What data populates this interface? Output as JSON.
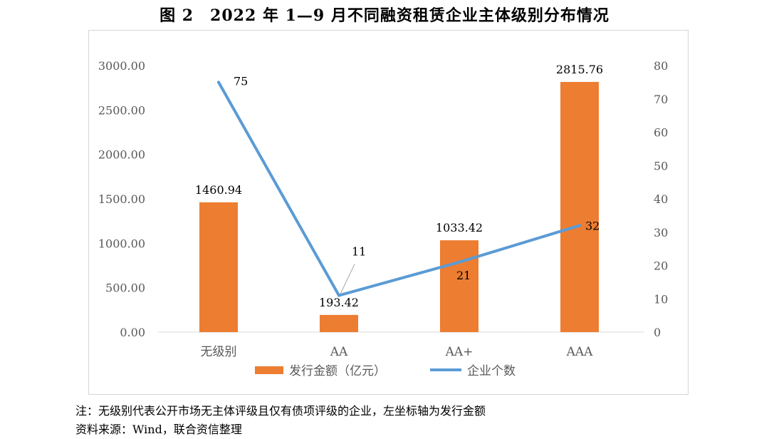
{
  "title": "图 2　2022 年 1—9 月不同融资租赁企业主体级别分布情况",
  "notes": {
    "note": "注：无级别代表公开市场无主体评级且仅有债项评级的企业，左坐标轴为发行金额",
    "source": "资料来源：Wind，联合资信整理"
  },
  "colors": {
    "bar": "#ED7D31",
    "line": "#5B9BD5",
    "grid": "#d9d9d9",
    "axis_text": "#595959"
  },
  "chart_data": {
    "type": "bar+line",
    "categories": [
      "无级别",
      "AA",
      "AA+",
      "AAA"
    ],
    "series": [
      {
        "name": "发行金额（亿元）",
        "type": "bar",
        "axis": "left",
        "values": [
          1460.94,
          193.42,
          1033.42,
          2815.76
        ],
        "labels": [
          "1460.94",
          "193.42",
          "1033.42",
          "2815.76"
        ]
      },
      {
        "name": "企业个数",
        "type": "line",
        "axis": "right",
        "values": [
          75,
          11,
          21,
          32
        ],
        "labels": [
          "75",
          "11",
          "21",
          "32"
        ]
      }
    ],
    "y_left": {
      "min": 0,
      "max": 3000,
      "ticks": [
        "0.00",
        "500.00",
        "1000.00",
        "1500.00",
        "2000.00",
        "2500.00",
        "3000.00"
      ]
    },
    "y_right": {
      "min": 0,
      "max": 80,
      "ticks": [
        "0",
        "10",
        "20",
        "30",
        "40",
        "50",
        "60",
        "70",
        "80"
      ]
    },
    "gridlines": false,
    "legend_position": "bottom"
  }
}
